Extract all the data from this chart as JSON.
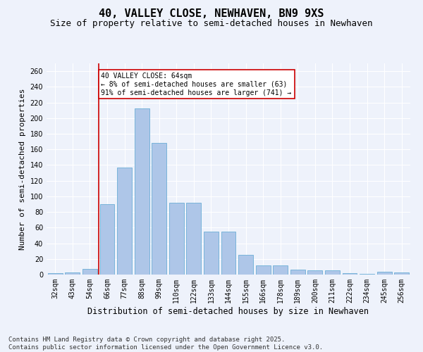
{
  "title": "40, VALLEY CLOSE, NEWHAVEN, BN9 9XS",
  "subtitle": "Size of property relative to semi-detached houses in Newhaven",
  "xlabel": "Distribution of semi-detached houses by size in Newhaven",
  "ylabel": "Number of semi-detached properties",
  "categories": [
    "32sqm",
    "43sqm",
    "54sqm",
    "66sqm",
    "77sqm",
    "88sqm",
    "99sqm",
    "110sqm",
    "122sqm",
    "133sqm",
    "144sqm",
    "155sqm",
    "166sqm",
    "178sqm",
    "189sqm",
    "200sqm",
    "211sqm",
    "222sqm",
    "234sqm",
    "245sqm",
    "256sqm"
  ],
  "values": [
    2,
    3,
    7,
    90,
    137,
    212,
    168,
    92,
    92,
    55,
    55,
    25,
    12,
    12,
    6,
    5,
    5,
    2,
    1,
    4,
    3
  ],
  "bar_color": "#aec6e8",
  "bar_edge_color": "#6baed6",
  "vline_color": "#cc0000",
  "vline_x_idx": 2.5,
  "annotation_text": "40 VALLEY CLOSE: 64sqm\n← 8% of semi-detached houses are smaller (63)\n91% of semi-detached houses are larger (741) →",
  "annotation_box_color": "#ffffff",
  "annotation_box_edge": "#cc0000",
  "ylim": [
    0,
    270
  ],
  "yticks": [
    0,
    20,
    40,
    60,
    80,
    100,
    120,
    140,
    160,
    180,
    200,
    220,
    240,
    260
  ],
  "footer_line1": "Contains HM Land Registry data © Crown copyright and database right 2025.",
  "footer_line2": "Contains public sector information licensed under the Open Government Licence v3.0.",
  "bg_color": "#eef2fb",
  "grid_color": "#ffffff",
  "title_fontsize": 11,
  "subtitle_fontsize": 9,
  "ylabel_fontsize": 8,
  "xlabel_fontsize": 8.5,
  "tick_fontsize": 7,
  "annot_fontsize": 7,
  "footer_fontsize": 6.5
}
